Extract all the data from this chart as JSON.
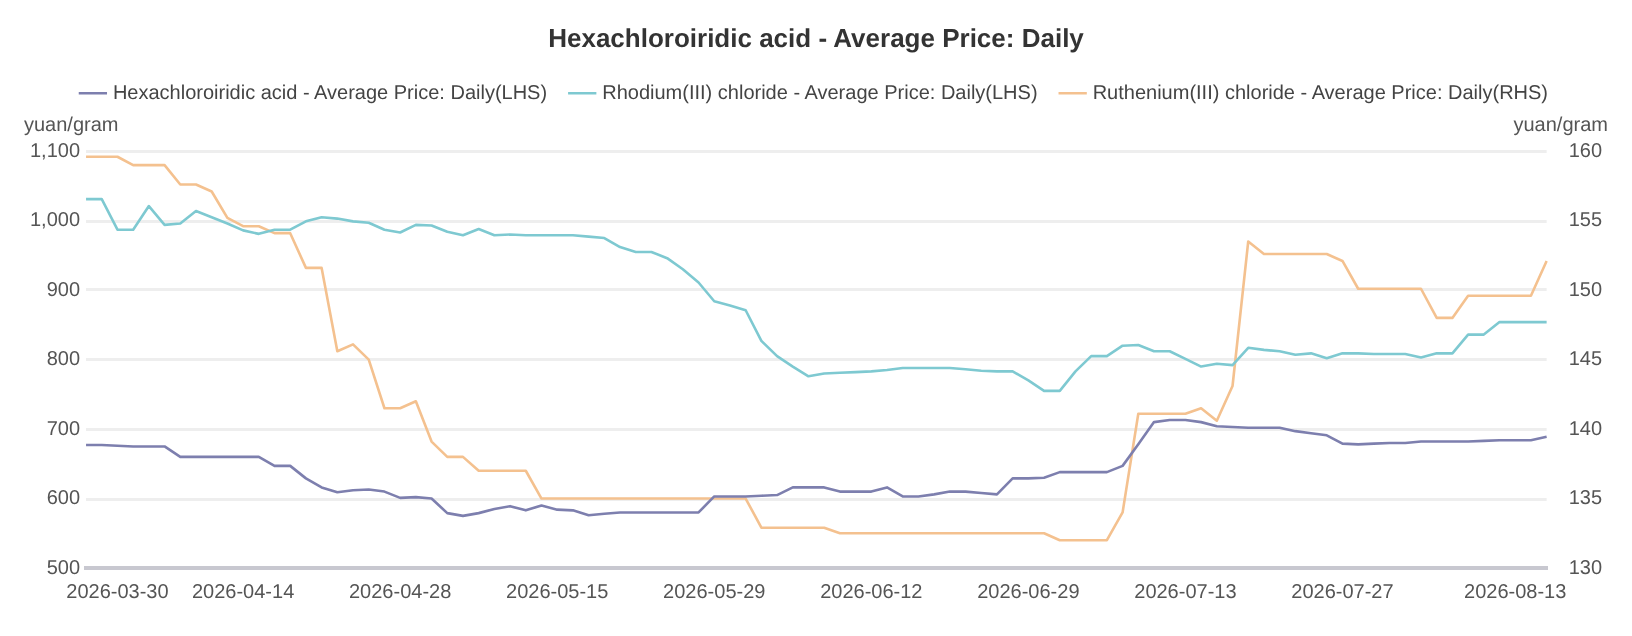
{
  "chart_data": {
    "type": "line",
    "title": "Hexachloroiridic acid - Average Price: Daily",
    "categories": [
      null,
      null,
      "2026-03-30",
      null,
      null,
      null,
      null,
      null,
      null,
      null,
      "2026-04-14",
      null,
      null,
      null,
      null,
      null,
      null,
      null,
      null,
      null,
      "2026-04-28",
      null,
      null,
      null,
      null,
      null,
      null,
      null,
      null,
      null,
      "2026-05-15",
      null,
      null,
      null,
      null,
      null,
      null,
      null,
      null,
      null,
      "2026-05-29",
      null,
      null,
      null,
      null,
      null,
      null,
      null,
      null,
      null,
      "2026-06-12",
      null,
      null,
      null,
      null,
      null,
      null,
      null,
      null,
      null,
      "2026-06-29",
      null,
      null,
      null,
      null,
      null,
      null,
      null,
      null,
      null,
      "2026-07-13",
      null,
      null,
      null,
      null,
      null,
      null,
      null,
      null,
      null,
      "2026-07-27",
      null,
      null,
      null,
      null,
      null,
      null,
      null,
      null,
      null,
      null,
      "2026-08-13",
      null,
      null
    ],
    "series": [
      {
        "name": "Hexachloroiridic acid - Average Price: Daily(LHS)",
        "color": "#7d7fae",
        "values": [
          677,
          677,
          676,
          675,
          675,
          675,
          660,
          660,
          660,
          660,
          660,
          660,
          647,
          647,
          629,
          616,
          609,
          612,
          613,
          610,
          601,
          602,
          600,
          579,
          575,
          579,
          585,
          589,
          583,
          590,
          584,
          583,
          576,
          578,
          580,
          580,
          580,
          580,
          580,
          580,
          603,
          603,
          603,
          604,
          605,
          616,
          616,
          616,
          610,
          610,
          610,
          616,
          603,
          603,
          606,
          610,
          610,
          608,
          606,
          629,
          629,
          630,
          638,
          638,
          638,
          638,
          647,
          678,
          710,
          713,
          713,
          710,
          704,
          703,
          702,
          702,
          702,
          697,
          694,
          691,
          679,
          678,
          679,
          680,
          680,
          682,
          682,
          682,
          682,
          683,
          684,
          684,
          684,
          689
        ]
      },
      {
        "name": "Rhodium(III) chloride - Average Price: Daily(LHS)",
        "color": "#7ec9d1",
        "values": [
          1031,
          1031,
          987,
          987,
          1021,
          994,
          996,
          1014,
          1005,
          996,
          986,
          981,
          987,
          987,
          999,
          1005,
          1003,
          999,
          997,
          987,
          983,
          994,
          993,
          984,
          979,
          988,
          979,
          980,
          979,
          979,
          979,
          979,
          977,
          975,
          962,
          955,
          955,
          946,
          930,
          911,
          884,
          878,
          871,
          827,
          805,
          790,
          776,
          780,
          781,
          782,
          783,
          785,
          788,
          788,
          788,
          788,
          786,
          784,
          783,
          783,
          770,
          755,
          755,
          783,
          805,
          805,
          820,
          821,
          812,
          812,
          801,
          790,
          794,
          792,
          817,
          814,
          812,
          807,
          809,
          802,
          809,
          809,
          808,
          808,
          808,
          803,
          809,
          809,
          836,
          836,
          854,
          854,
          854,
          854
        ]
      },
      {
        "name": "Ruthenium(III) chloride - Average Price: Daily(RHS)",
        "color": "#f4c18f",
        "axis": "y2",
        "values": [
          159.6,
          159.6,
          159.6,
          159,
          159,
          159,
          157.6,
          157.6,
          157.1,
          155.2,
          154.6,
          154.6,
          154.1,
          154.1,
          151.6,
          151.6,
          145.6,
          146.1,
          145,
          141.5,
          141.5,
          142,
          139.1,
          138,
          138,
          137,
          137,
          137,
          137,
          135,
          135,
          135,
          135,
          135,
          135,
          135,
          135,
          135,
          135,
          135,
          135,
          135,
          135,
          132.9,
          132.9,
          132.9,
          132.9,
          132.9,
          132.5,
          132.5,
          132.5,
          132.5,
          132.5,
          132.5,
          132.5,
          132.5,
          132.5,
          132.5,
          132.5,
          132.5,
          132.5,
          132.5,
          132,
          132,
          132,
          132,
          134,
          141.1,
          141.1,
          141.1,
          141.1,
          141.5,
          140.6,
          143.1,
          153.5,
          152.6,
          152.6,
          152.6,
          152.6,
          152.6,
          152.1,
          150.1,
          150.1,
          150.1,
          150.1,
          150.1,
          148,
          148,
          149.6,
          149.6,
          149.6,
          149.6,
          149.6,
          152.1
        ]
      }
    ],
    "ylabel": "yuan/gram",
    "y2label": "yuan/gram",
    "ylim": [
      500,
      1100
    ],
    "yticks": [
      500,
      600,
      700,
      800,
      900,
      {
        "value": 1000,
        "label": "1,000"
      },
      {
        "value": 1100,
        "label": "1,100"
      }
    ],
    "y2lim": [
      130,
      160
    ],
    "y2ticks": [
      130,
      135,
      140,
      145,
      150,
      155,
      160
    ],
    "grid": "y",
    "legend": "top"
  }
}
